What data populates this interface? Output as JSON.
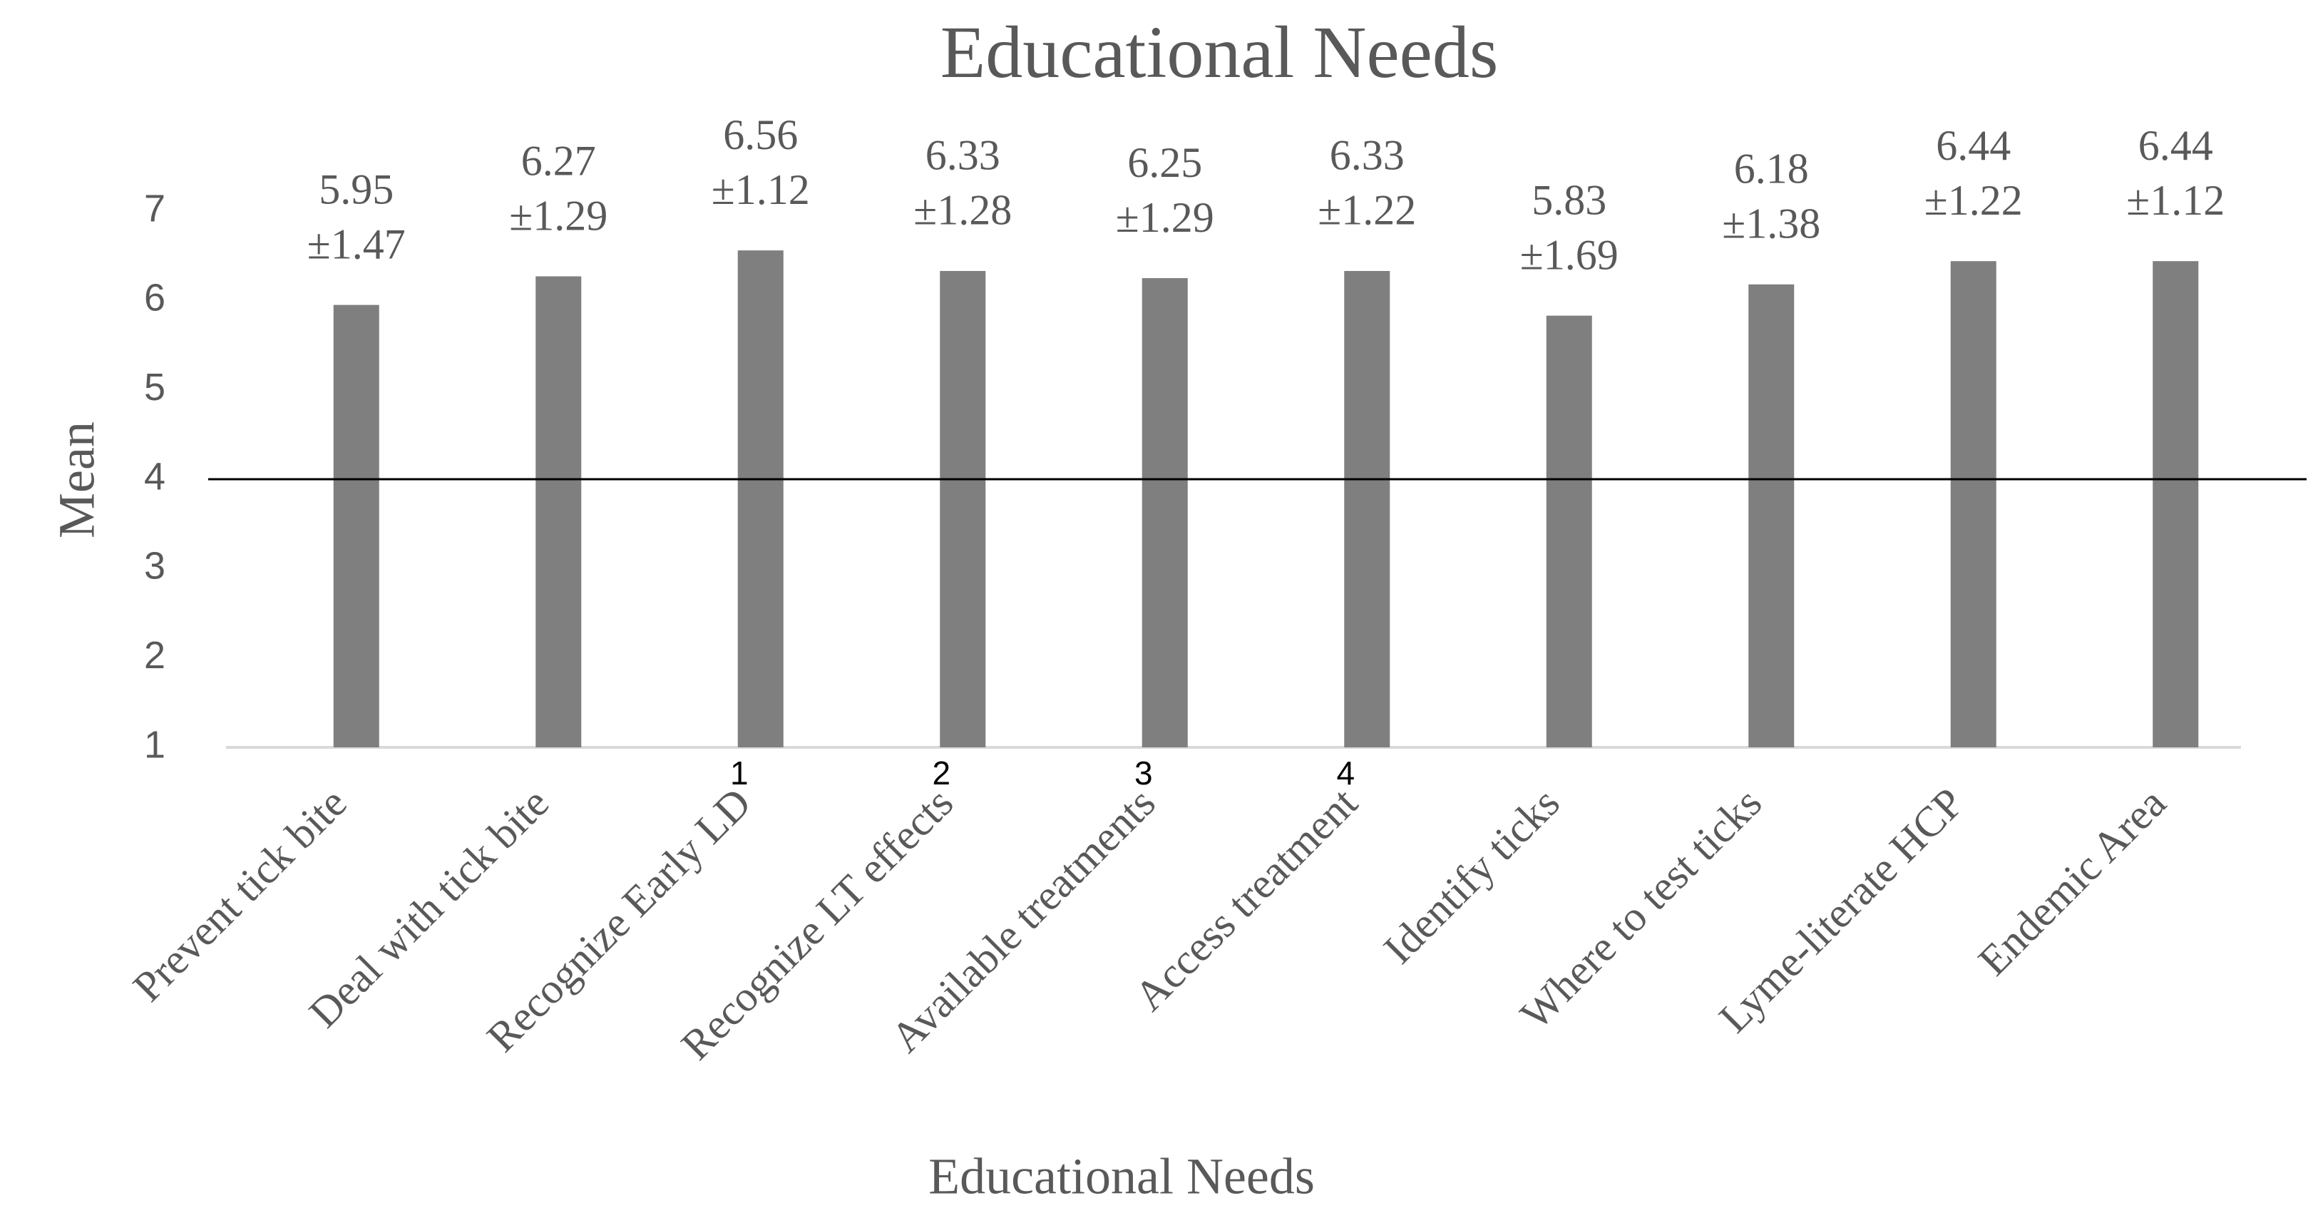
{
  "chart_data": {
    "type": "bar",
    "title": "Educational Needs",
    "x_label": "Educational Needs",
    "y_label": "Mean",
    "categories": [
      "Prevent tick bite",
      "Deal with tick bite",
      "Recognize Early LD",
      "Recognize LT effects",
      "Available treatments",
      "Access treatment",
      "Identify ticks",
      "Where to test ticks",
      "Lyme-literate HCP",
      "Endemic Area"
    ],
    "values": [
      5.95,
      6.27,
      6.56,
      6.33,
      6.25,
      6.33,
      5.83,
      6.18,
      6.44,
      6.44
    ],
    "sd_labels": [
      "±1.47",
      "±1.29",
      "±1.12",
      "±1.28",
      "±1.29",
      "±1.22",
      "±1.69",
      "±1.38",
      "±1.22",
      "±1.12"
    ],
    "annotations": [
      {
        "text": "1",
        "at": "Recognize Early LD"
      },
      {
        "text": "2",
        "at": "Recognize LT effects"
      },
      {
        "text": "3",
        "at": "Available treatments"
      },
      {
        "text": "4",
        "at": "Access treatment"
      }
    ],
    "reference_line": 4,
    "color": "#7f7f7f",
    "ylim": [
      1,
      7
    ],
    "yticks": [
      1,
      2,
      3,
      4,
      5,
      6,
      7
    ],
    "grid": false
  }
}
